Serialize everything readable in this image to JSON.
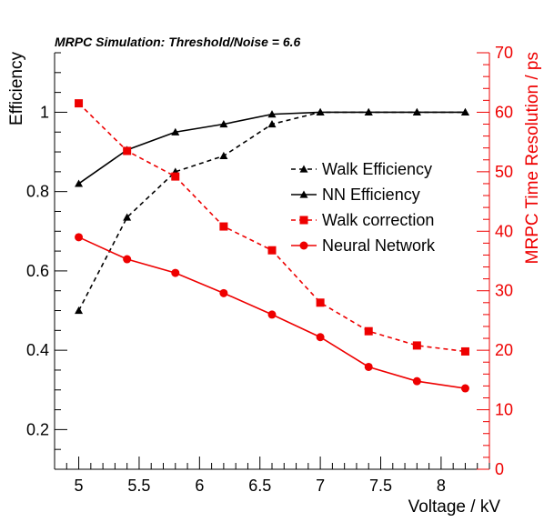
{
  "chart_data": {
    "type": "line",
    "title": "MRPC Simulation: Threshold/Noise = 6.6",
    "xlabel": "Voltage / kV",
    "ylabel": "Efficiency",
    "y2label": "MRPC Time Resolution / ps",
    "xlim": [
      4.8,
      8.4
    ],
    "ylim": [
      0.1,
      1.15
    ],
    "y2lim": [
      0,
      70
    ],
    "x_ticks": [
      "5",
      "5.5",
      "6",
      "6.5",
      "7",
      "7.5",
      "8"
    ],
    "y_ticks": [
      "0.2",
      "0.4",
      "0.6",
      "0.8",
      "1"
    ],
    "y2_ticks": [
      "0",
      "10",
      "20",
      "30",
      "40",
      "50",
      "60",
      "70"
    ],
    "legend_position": "center-right",
    "colors": {
      "efficiency_axis": "#000000",
      "resolution_axis": "#ee0000"
    },
    "series": [
      {
        "name": "Walk Efficiency",
        "axis": "left",
        "color": "#000000",
        "dash": true,
        "marker": "triangle",
        "x": [
          5.0,
          5.4,
          5.8,
          6.2,
          6.6,
          7.0,
          7.4,
          7.8,
          8.2
        ],
        "y": [
          0.5,
          0.735,
          0.85,
          0.89,
          0.97,
          1.0,
          1.0,
          1.0,
          1.0
        ]
      },
      {
        "name": "NN Efficiency",
        "axis": "left",
        "color": "#000000",
        "dash": false,
        "marker": "triangle",
        "x": [
          5.0,
          5.4,
          5.8,
          6.2,
          6.6,
          7.0,
          7.4,
          7.8,
          8.2
        ],
        "y": [
          0.82,
          0.905,
          0.95,
          0.97,
          0.995,
          1.0,
          1.0,
          1.0,
          1.0
        ]
      },
      {
        "name": "Walk correction",
        "axis": "right",
        "color": "#ee0000",
        "dash": true,
        "marker": "square",
        "x": [
          5.0,
          5.4,
          5.8,
          6.2,
          6.6,
          7.0,
          7.4,
          7.8,
          8.2
        ],
        "y": [
          61.5,
          53.5,
          49.2,
          40.8,
          36.8,
          28.0,
          23.2,
          20.8,
          19.8
        ]
      },
      {
        "name": "Neural Network",
        "axis": "right",
        "color": "#ee0000",
        "dash": false,
        "marker": "circle",
        "x": [
          5.0,
          5.4,
          5.8,
          6.2,
          6.6,
          7.0,
          7.4,
          7.8,
          8.2
        ],
        "y": [
          39.0,
          35.3,
          33.0,
          29.6,
          26.0,
          22.2,
          17.2,
          14.8,
          13.6
        ]
      }
    ]
  }
}
